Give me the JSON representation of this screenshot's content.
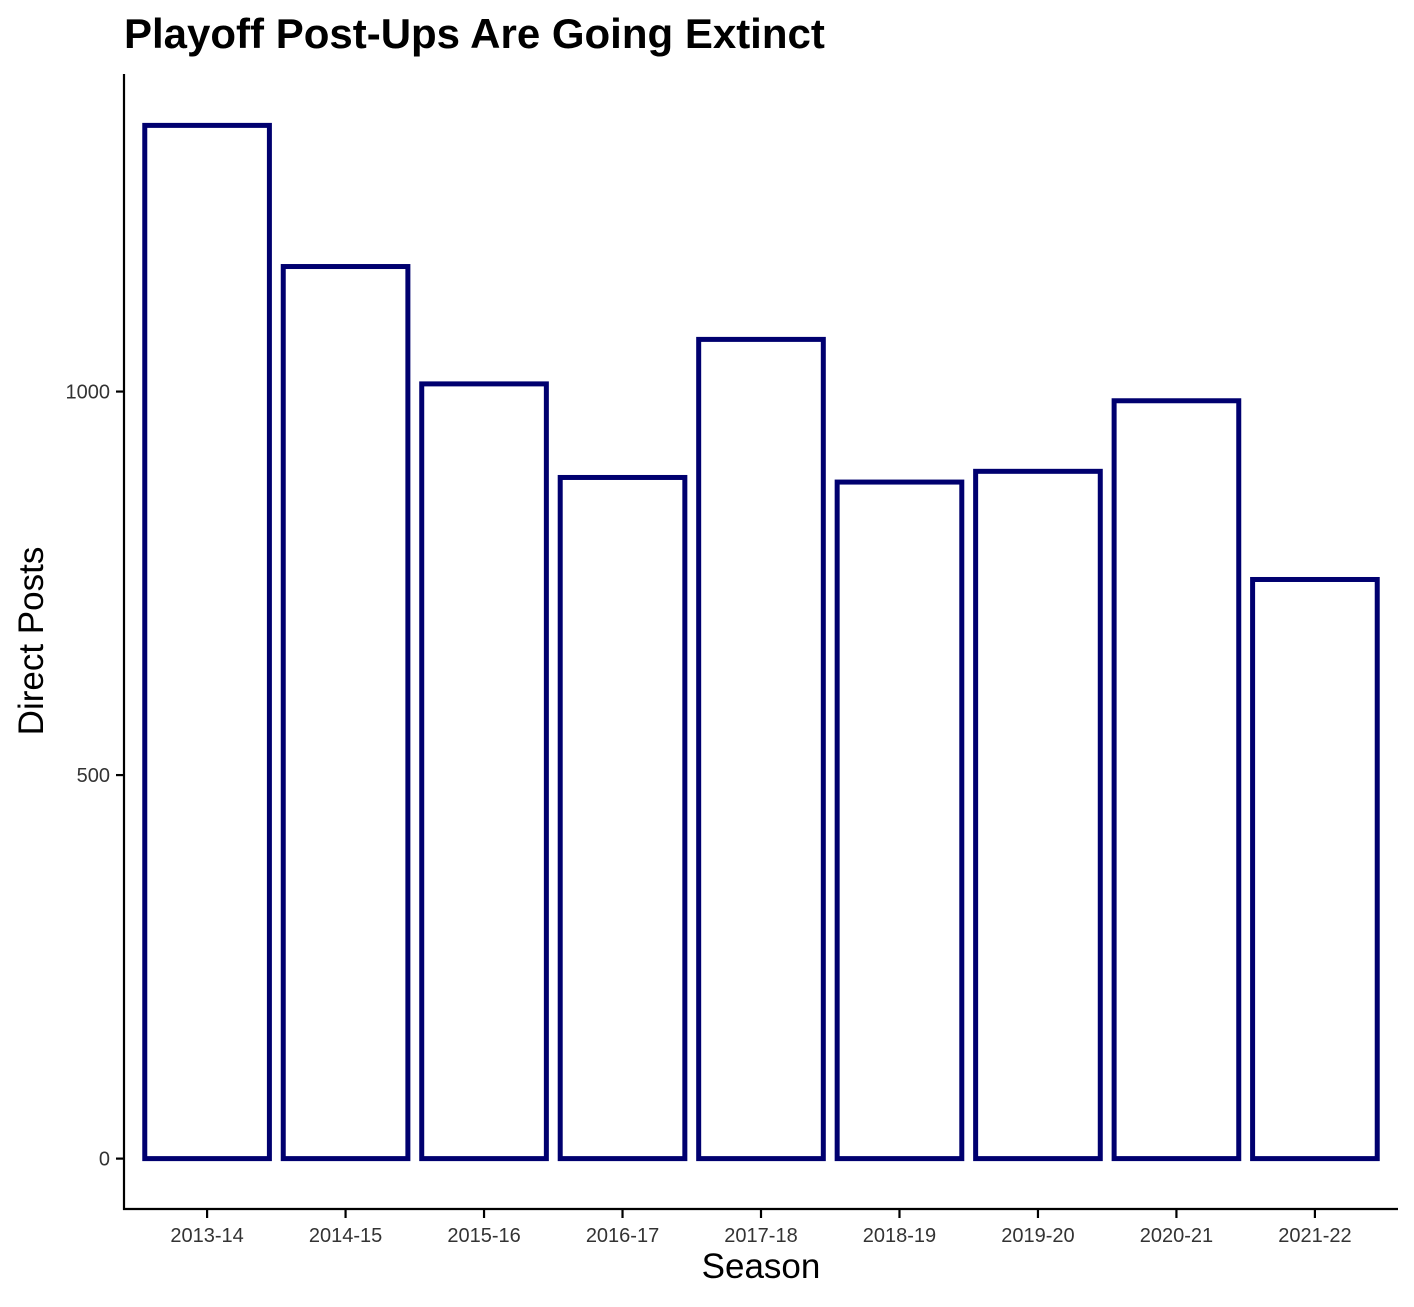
{
  "chart_data": {
    "type": "bar",
    "title": "Playoff Post-Ups Are Going Extinct",
    "xlabel": "Season",
    "ylabel": "Direct Posts",
    "categories": [
      "2013-14",
      "2014-15",
      "2015-16",
      "2016-17",
      "2017-18",
      "2018-19",
      "2019-20",
      "2020-21",
      "2021-22"
    ],
    "values": [
      1347,
      1163,
      1010,
      888,
      1068,
      882,
      896,
      988,
      755
    ],
    "y_ticks": [
      {
        "value": 0,
        "label": "0"
      },
      {
        "value": 500,
        "label": "500"
      },
      {
        "value": 1000,
        "label": "1000"
      }
    ],
    "ylim": [
      -67,
      1414
    ],
    "grid": false,
    "legend": "none",
    "colors": {
      "bar_outline": "#00006f",
      "bar_fill": "#ffffff"
    }
  }
}
